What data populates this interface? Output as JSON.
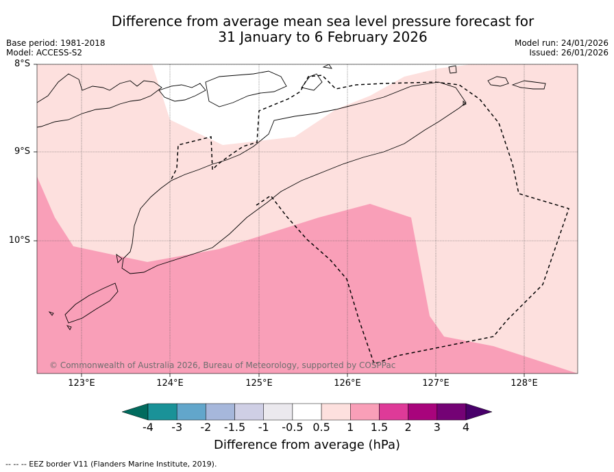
{
  "title": {
    "line1": "Difference from average mean sea level pressure forecast for",
    "line2": "31 January to 6 February 2026"
  },
  "meta": {
    "base_period": "Base period: 1981-2018",
    "model": "Model: ACCESS-S2",
    "model_run": "Model run: 24/01/2026",
    "issued": "Issued: 26/01/2026"
  },
  "map": {
    "latitude_labels": [
      "8°S",
      "9°S",
      "10°S"
    ],
    "longitude_labels": [
      "123°E",
      "124°E",
      "125°E",
      "126°E",
      "127°E",
      "128°E"
    ],
    "copyright": "© Commonwealth of Australia 2026, Bureau of Meteorology, supported by COSPPac"
  },
  "colorbar": {
    "ticks": [
      "-4",
      "-3",
      "-2",
      "-1.5",
      "-1",
      "-0.5",
      "0.5",
      "1",
      "1.5",
      "2",
      "3",
      "4"
    ],
    "colors": [
      "#1a9298",
      "#62a6cb",
      "#a6b7db",
      "#cfcfe5",
      "#ebe9ee",
      "#ffffff",
      "#fde0de",
      "#f99fb8",
      "#de3a98",
      "#a8047c",
      "#740275"
    ],
    "low_extend_color": "#016b5e",
    "high_extend_color": "#48006a",
    "label": "Difference from average (hPa)"
  },
  "footer": "--  --  -- EEZ border V11 (Flanders Marine Institute, 2019)."
}
